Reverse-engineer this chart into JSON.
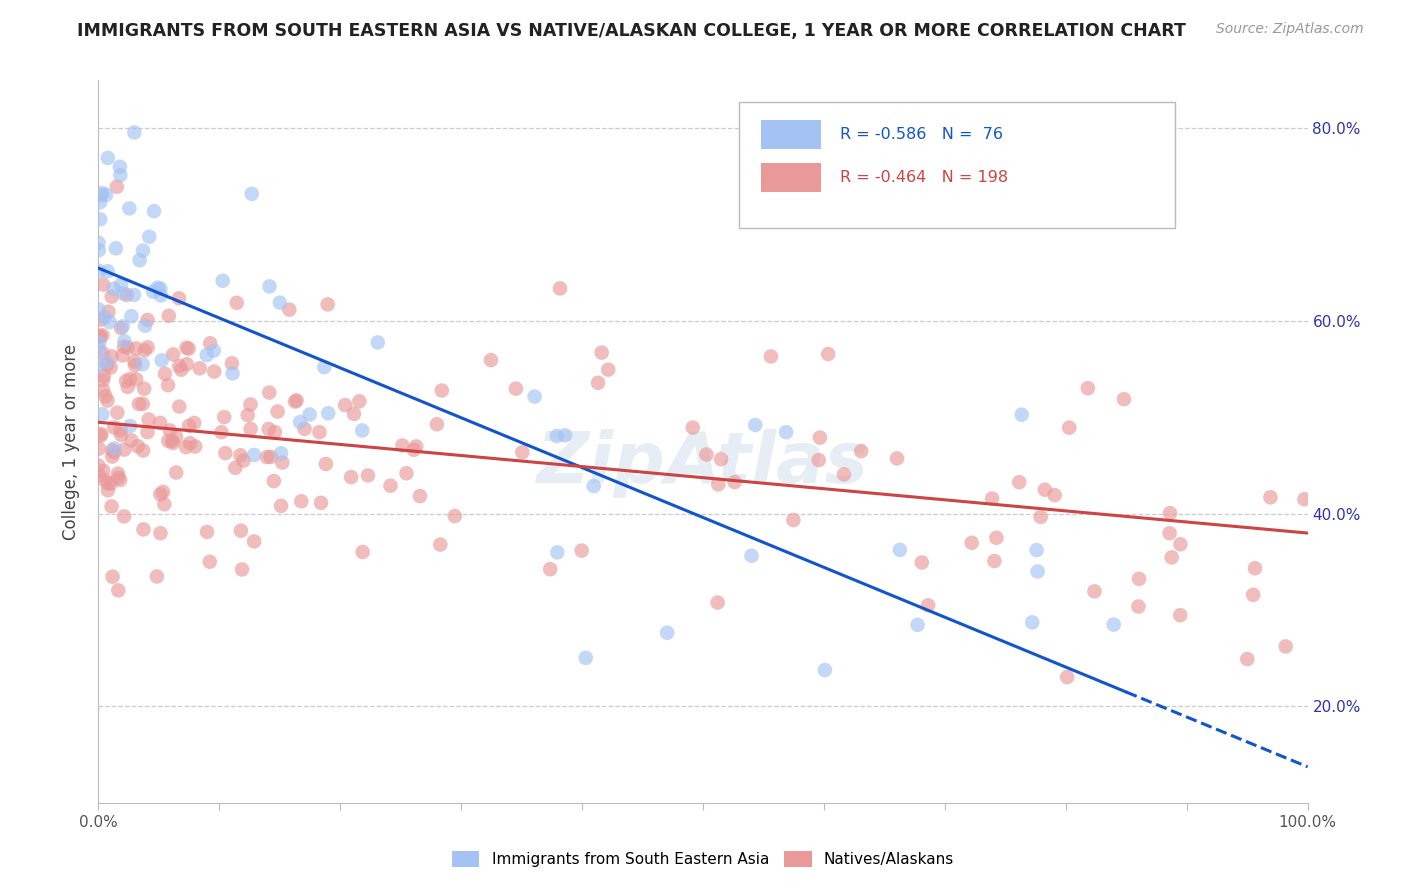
{
  "title": "IMMIGRANTS FROM SOUTH EASTERN ASIA VS NATIVE/ALASKAN COLLEGE, 1 YEAR OR MORE CORRELATION CHART",
  "source": "Source: ZipAtlas.com",
  "ylabel": "College, 1 year or more",
  "xlim": [
    0.0,
    1.0
  ],
  "ylim": [
    0.1,
    0.85
  ],
  "ytick_positions": [
    0.2,
    0.4,
    0.6,
    0.8
  ],
  "ytick_labels": [
    "20.0%",
    "40.0%",
    "60.0%",
    "80.0%"
  ],
  "blue_R": -0.586,
  "blue_N": 76,
  "pink_R": -0.464,
  "pink_N": 198,
  "blue_color": "#a4c2f4",
  "pink_color": "#ea9999",
  "blue_line_color": "#1155cc",
  "pink_line_color": "#cc4444",
  "watermark": "ZipAtlas",
  "legend_label_blue": "Immigrants from South Eastern Asia",
  "legend_label_pink": "Natives/Alaskans",
  "blue_line_x0": 0.0,
  "blue_line_y0": 0.655,
  "blue_line_x1": 0.85,
  "blue_line_y1": 0.215,
  "pink_line_x0": 0.0,
  "pink_line_y0": 0.495,
  "pink_line_x1": 1.0,
  "pink_line_y1": 0.38
}
